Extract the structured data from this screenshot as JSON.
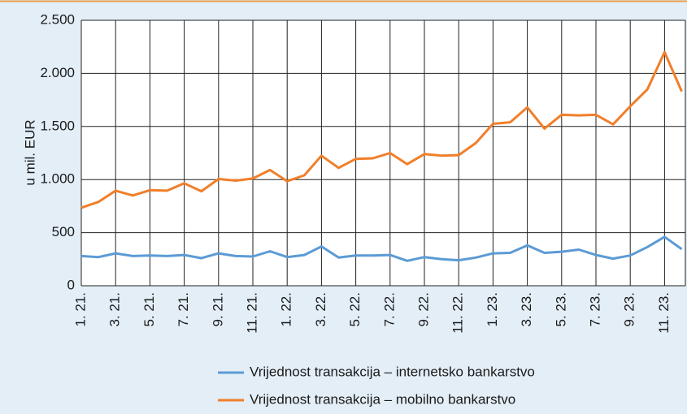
{
  "chart_data": {
    "type": "line",
    "y_label": "u mil. EUR",
    "categories": [
      "1. 21.",
      null,
      "3. 21.",
      null,
      "5. 21.",
      null,
      "7. 21.",
      null,
      "9. 21.",
      null,
      "11. 21.",
      null,
      "1. 22.",
      null,
      "3. 22.",
      null,
      "5. 22.",
      null,
      "7. 22.",
      null,
      "9. 22.",
      null,
      "11. 22.",
      null,
      "1. 23.",
      null,
      "3. 23.",
      null,
      "5. 23.",
      null,
      "7. 23.",
      null,
      "9. 23.",
      null,
      "11. 23.",
      null
    ],
    "series": [
      {
        "name": "Vrijednost transakcija – internetsko bankarstvo",
        "color": "#5b9bd5",
        "values": [
          280,
          270,
          305,
          280,
          285,
          280,
          290,
          260,
          305,
          280,
          275,
          325,
          270,
          290,
          370,
          265,
          285,
          285,
          290,
          235,
          270,
          250,
          240,
          265,
          305,
          310,
          380,
          310,
          320,
          340,
          290,
          255,
          285,
          365,
          460,
          345
        ]
      },
      {
        "name": "Vrijednost transakcija – mobilno bankarstvo",
        "color": "#f07f2a",
        "values": [
          735,
          790,
          895,
          850,
          900,
          895,
          965,
          890,
          1005,
          990,
          1010,
          1090,
          985,
          1040,
          1225,
          1110,
          1195,
          1200,
          1250,
          1145,
          1240,
          1225,
          1230,
          1345,
          1525,
          1540,
          1680,
          1480,
          1610,
          1605,
          1610,
          1520,
          1690,
          1850,
          2200,
          1830
        ]
      }
    ],
    "ylim": [
      0,
      2500
    ],
    "yticks": [
      0,
      500,
      {
        "value": 1000,
        "label": "1.000"
      },
      {
        "value": 1500,
        "label": "1.500"
      },
      {
        "value": 2000,
        "label": "2.000"
      },
      {
        "value": 2500,
        "label": "2.500"
      }
    ],
    "grid": true
  }
}
